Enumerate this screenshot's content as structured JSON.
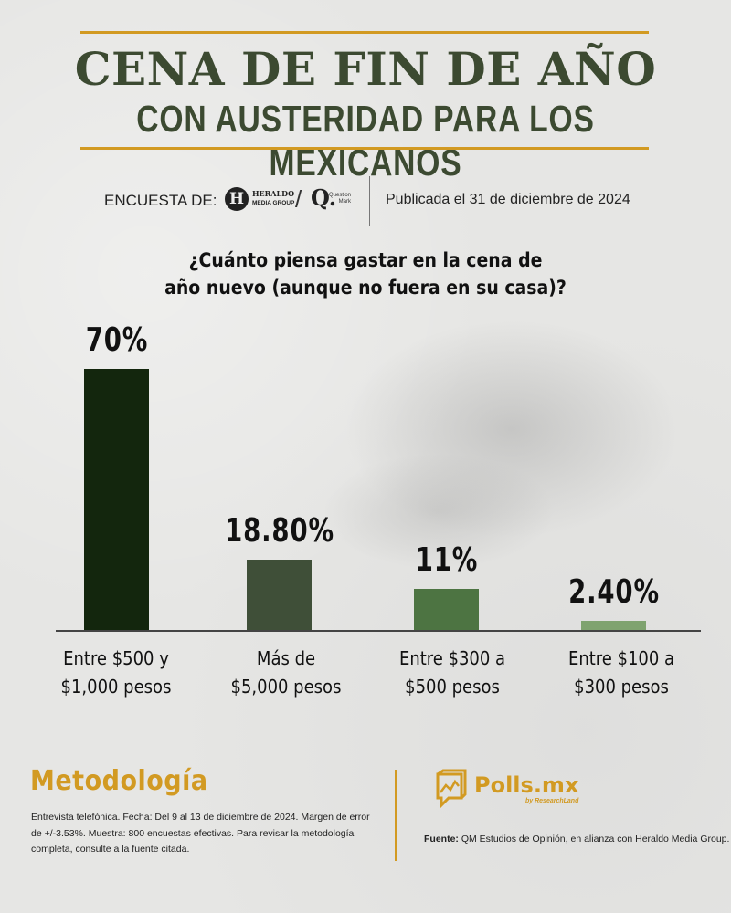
{
  "colors": {
    "gold": "#d29a22",
    "title_green": "#3c4a31",
    "bar_colors": [
      "#13260d",
      "#3f4f38",
      "#4d7442",
      "#7fa36f"
    ]
  },
  "header": {
    "title": "CENA DE FIN DE AÑO",
    "subtitle": "CON AUSTERIDAD PARA LOS MEXICANOS"
  },
  "byline": {
    "label": "ENCUESTA DE:",
    "logo_heraldo_mark": "H",
    "logo_heraldo_line1": "HERALDO",
    "logo_heraldo_line2": "MEDIA GROUP",
    "separator": "/",
    "logo_qm_mark": "Q.",
    "logo_qm_line1": "Question",
    "logo_qm_line2": "Mark",
    "published": "Publicada el 31 de diciembre de 2024"
  },
  "question": {
    "line1": "¿Cuánto piensa gastar en la cena de",
    "line2": "año nuevo (aunque no fuera en su casa)?"
  },
  "chart_data": {
    "type": "bar",
    "title": "¿Cuánto piensa gastar en la cena de año nuevo (aunque no fuera en su casa)?",
    "categories": [
      "Entre $500 y $1,000 pesos",
      "Más de $5,000 pesos",
      "Entre $300 a $500 pesos",
      "Entre $100 a $300 pesos"
    ],
    "values": [
      70,
      18.8,
      11,
      2.4
    ],
    "value_labels": [
      "70%",
      "18.80%",
      "11%",
      "2.40%"
    ],
    "category_lines": [
      [
        "Entre $500 y",
        "$1,000 pesos"
      ],
      [
        "Más de",
        "$5,000 pesos"
      ],
      [
        "Entre $300 a",
        "$500 pesos"
      ],
      [
        "Entre $100 a",
        "$300 pesos"
      ]
    ],
    "xlabel": "",
    "ylabel": "",
    "ylim": [
      0,
      70
    ],
    "grid": false,
    "legend": "none",
    "unit": "%"
  },
  "methodology": {
    "title": "Metodología",
    "body": "Entrevista telefónica. Fecha: Del 9 al 13 de diciembre de 2024. Margen de error de +/-3.53%. Muestra: 800 encuestas efectivas. Para revisar la metodología completa, consulte a la fuente citada."
  },
  "brand": {
    "name": "Polls.mx",
    "sub": "by ResearchLand"
  },
  "source": {
    "label": "Fuente:",
    "text": " QM Estudios de Opinión, en alianza con Heraldo Media Group."
  }
}
